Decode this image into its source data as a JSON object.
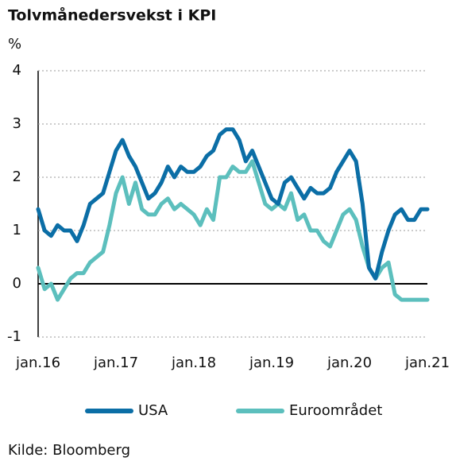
{
  "chart_data": {
    "type": "line",
    "title": "Tolvmånedersvekst i KPI",
    "y_label": "%",
    "source": "Kilde: Bloomberg",
    "categories": [
      "jan.16",
      null,
      null,
      null,
      null,
      null,
      null,
      null,
      null,
      null,
      null,
      null,
      "jan.17",
      null,
      null,
      null,
      null,
      null,
      null,
      null,
      null,
      null,
      null,
      null,
      "jan.18",
      null,
      null,
      null,
      null,
      null,
      null,
      null,
      null,
      null,
      null,
      null,
      "jan.19",
      null,
      null,
      null,
      null,
      null,
      null,
      null,
      null,
      null,
      null,
      null,
      "jan.20",
      null,
      null,
      null,
      null,
      null,
      null,
      null,
      null,
      null,
      null,
      null,
      "jan.21"
    ],
    "series": [
      {
        "name": "USA",
        "color": "#0b6ea6",
        "values": [
          1.4,
          1.0,
          0.9,
          1.1,
          1.0,
          1.0,
          0.8,
          1.1,
          1.5,
          1.6,
          1.7,
          2.1,
          2.5,
          2.7,
          2.4,
          2.2,
          1.9,
          1.6,
          1.7,
          1.9,
          2.2,
          2.0,
          2.2,
          2.1,
          2.1,
          2.2,
          2.4,
          2.5,
          2.8,
          2.9,
          2.9,
          2.7,
          2.3,
          2.5,
          2.2,
          1.9,
          1.6,
          1.5,
          1.9,
          2.0,
          1.8,
          1.6,
          1.8,
          1.7,
          1.7,
          1.8,
          2.1,
          2.3,
          2.5,
          2.3,
          1.5,
          0.3,
          0.1,
          0.6,
          1.0,
          1.3,
          1.4,
          1.2,
          1.2,
          1.4,
          1.4
        ]
      },
      {
        "name": "Euroområdet",
        "color": "#5cbfbd",
        "values": [
          0.3,
          -0.1,
          0.0,
          -0.3,
          -0.1,
          0.1,
          0.2,
          0.2,
          0.4,
          0.5,
          0.6,
          1.1,
          1.7,
          2.0,
          1.5,
          1.9,
          1.4,
          1.3,
          1.3,
          1.5,
          1.6,
          1.4,
          1.5,
          1.4,
          1.3,
          1.1,
          1.4,
          1.2,
          2.0,
          2.0,
          2.2,
          2.1,
          2.1,
          2.3,
          1.9,
          1.5,
          1.4,
          1.5,
          1.4,
          1.7,
          1.2,
          1.3,
          1.0,
          1.0,
          0.8,
          0.7,
          1.0,
          1.3,
          1.4,
          1.2,
          0.7,
          0.3,
          0.1,
          0.3,
          0.4,
          -0.2,
          -0.3,
          -0.3,
          -0.3,
          -0.3,
          -0.3
        ]
      }
    ],
    "ylim": [
      -1,
      4
    ],
    "yticks": [
      4,
      3,
      2,
      1,
      0,
      -1
    ],
    "grid": true
  }
}
